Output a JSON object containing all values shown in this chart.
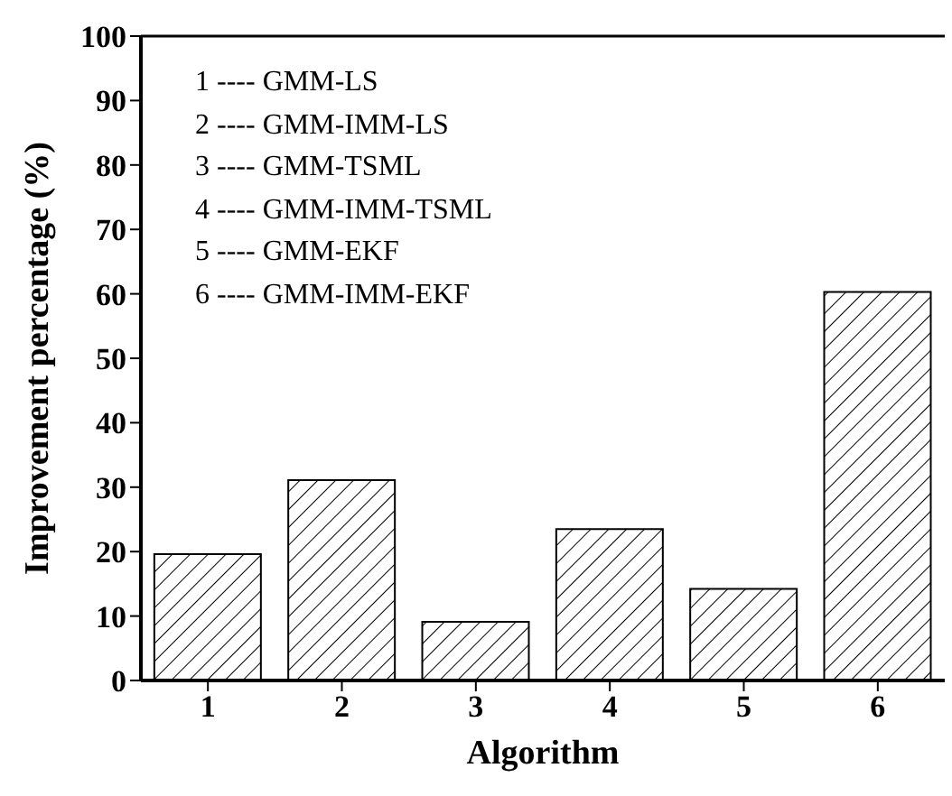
{
  "chart_data": {
    "type": "bar",
    "xlabel": "Algorithm",
    "ylabel": "Improvement percentage (%)",
    "categories": [
      "1",
      "2",
      "3",
      "4",
      "5",
      "6"
    ],
    "values": [
      19.6,
      31.1,
      9.1,
      23.5,
      14.2,
      60.3
    ],
    "color": "#000000",
    "ylim": [
      0,
      100
    ],
    "yticks": [
      0,
      10,
      20,
      30,
      40,
      50,
      60,
      70,
      80,
      90,
      100
    ],
    "grid": false,
    "legend": false,
    "annotations": [
      "1 ---- GMM-LS",
      "2 ---- GMM-IMM-LS",
      "3 ---- GMM-TSML",
      "4 ---- GMM-IMM-TSML",
      "5 ---- GMM-EKF",
      "6 ---- GMM-IMM-EKF"
    ]
  }
}
